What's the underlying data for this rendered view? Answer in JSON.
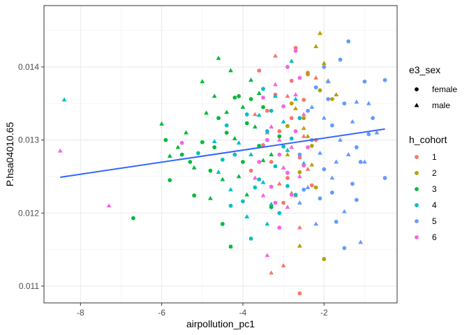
{
  "chart_data": {
    "type": "scatter",
    "title": "",
    "xlabel": "airpollution_pc1",
    "ylabel": "P.hsa04010.65",
    "xlim": [
      -8.9,
      -0.2
    ],
    "ylim": [
      0.01077,
      0.01484
    ],
    "x_ticks": [
      -8,
      -6,
      -4,
      -2
    ],
    "x_tick_labels": [
      "-8",
      "-6",
      "-4",
      "-2"
    ],
    "y_ticks": [
      0.011,
      0.012,
      0.013,
      0.014
    ],
    "y_tick_labels": [
      "0.011",
      "0.012",
      "0.013",
      "0.014"
    ],
    "grid": true,
    "legend_position": "right",
    "shape_legend": {
      "title": "e3_sex",
      "entries": [
        {
          "label": "female",
          "shape": "circle"
        },
        {
          "label": "male",
          "shape": "triangle"
        }
      ]
    },
    "color_legend": {
      "title": "h_cohort",
      "entries": [
        {
          "label": "1",
          "color": "#F8766D"
        },
        {
          "label": "2",
          "color": "#B79F00"
        },
        {
          "label": "3",
          "color": "#00BA38"
        },
        {
          "label": "4",
          "color": "#00BFC4"
        },
        {
          "label": "5",
          "color": "#619CFF"
        },
        {
          "label": "6",
          "color": "#F564E3"
        }
      ]
    },
    "trend_line": {
      "color": "#3366FF",
      "x": [
        -8.5,
        -0.5
      ],
      "y": [
        0.01249,
        0.01315
      ]
    },
    "series": [
      {
        "cohort": "1",
        "sex": "female",
        "points": [
          [
            -3.5,
            0.01293
          ],
          [
            -3.3,
            0.0127
          ],
          [
            -3.1,
            0.01312
          ],
          [
            -2.9,
            0.01248
          ],
          [
            -2.8,
            0.0133
          ],
          [
            -2.6,
            0.01276
          ],
          [
            -2.5,
            0.01355
          ],
          [
            -3.2,
            0.01362
          ],
          [
            -2.4,
            0.01392
          ],
          [
            -3.6,
            0.01395
          ],
          [
            -2.7,
            0.01426
          ],
          [
            -3.0,
            0.01214
          ],
          [
            -2.2,
            0.013
          ],
          [
            -3.8,
            0.01258
          ],
          [
            -2.6,
            0.0109
          ],
          [
            -2.8,
            0.01381
          ],
          [
            -3.4,
            0.0134
          ],
          [
            -2.3,
            0.01238
          ]
        ]
      },
      {
        "cohort": "1",
        "sex": "male",
        "points": [
          [
            -3.4,
            0.0131
          ],
          [
            -3.1,
            0.0124
          ],
          [
            -2.9,
            0.0136
          ],
          [
            -2.7,
            0.01224
          ],
          [
            -2.5,
            0.01305
          ],
          [
            -3.7,
            0.01335
          ],
          [
            -2.2,
            0.01385
          ],
          [
            -3.0,
            0.01128
          ],
          [
            -3.3,
            0.01118
          ],
          [
            -3.2,
            0.01415
          ],
          [
            -2.6,
            0.0118
          ],
          [
            -2.4,
            0.0126
          ]
        ]
      },
      {
        "cohort": "2",
        "sex": "female",
        "points": [
          [
            -2.9,
            0.01319
          ],
          [
            -2.5,
            0.0133
          ],
          [
            -2.3,
            0.01292
          ],
          [
            -2.1,
            0.01368
          ],
          [
            -2.0,
            0.01137
          ],
          [
            -2.6,
            0.01256
          ],
          [
            -2.8,
            0.0135
          ],
          [
            -2.2,
            0.01235
          ],
          [
            -2.4,
            0.0139
          ],
          [
            -1.8,
            0.01356
          ]
        ]
      },
      {
        "cohort": "2",
        "sex": "male",
        "points": [
          [
            -2.1,
            0.01446
          ],
          [
            -2.7,
            0.01343
          ],
          [
            -2.5,
            0.01316
          ],
          [
            -2.3,
            0.01266
          ],
          [
            -1.9,
            0.01381
          ],
          [
            -2.0,
            0.01405
          ],
          [
            -2.8,
            0.01227
          ],
          [
            -2.6,
            0.01155
          ],
          [
            -2.2,
            0.01428
          ],
          [
            -1.7,
            0.01362
          ],
          [
            -2.4,
            0.01305
          ],
          [
            -2.9,
            0.0128
          ]
        ]
      },
      {
        "cohort": "3",
        "sex": "female",
        "points": [
          [
            -6.7,
            0.01193
          ],
          [
            -5.0,
            0.01297
          ],
          [
            -4.6,
            0.0133
          ],
          [
            -4.4,
            0.0131
          ],
          [
            -4.2,
            0.01358
          ],
          [
            -3.9,
            0.01323
          ],
          [
            -3.6,
            0.01292
          ],
          [
            -5.5,
            0.0128
          ],
          [
            -5.2,
            0.01224
          ],
          [
            -4.8,
            0.01258
          ],
          [
            -4.0,
            0.0127
          ],
          [
            -3.8,
            0.01356
          ],
          [
            -4.5,
            0.01185
          ],
          [
            -5.3,
            0.0127
          ],
          [
            -3.5,
            0.01345
          ],
          [
            -4.1,
            0.0136
          ],
          [
            -4.7,
            0.0129
          ],
          [
            -5.8,
            0.01245
          ],
          [
            -3.3,
            0.01208
          ],
          [
            -4.3,
            0.01154
          ],
          [
            -3.1,
            0.01305
          ],
          [
            -5.9,
            0.013
          ]
        ]
      },
      {
        "cohort": "3",
        "sex": "male",
        "points": [
          [
            -5.0,
            0.0138
          ],
          [
            -4.7,
            0.0136
          ],
          [
            -4.4,
            0.01338
          ],
          [
            -4.2,
            0.01302
          ],
          [
            -4.0,
            0.01345
          ],
          [
            -3.7,
            0.01318
          ],
          [
            -5.6,
            0.0129
          ],
          [
            -5.4,
            0.0131
          ],
          [
            -4.9,
            0.01337
          ],
          [
            -3.5,
            0.01272
          ],
          [
            -3.3,
            0.0128
          ],
          [
            -4.6,
            0.01412
          ],
          [
            -4.3,
            0.01395
          ],
          [
            -3.8,
            0.01382
          ],
          [
            -5.2,
            0.01262
          ],
          [
            -4.8,
            0.0122
          ],
          [
            -4.1,
            0.0125
          ],
          [
            -3.9,
            0.01225
          ],
          [
            -5.8,
            0.01278
          ],
          [
            -6.0,
            0.01322
          ],
          [
            -4.5,
            0.01246
          ],
          [
            -3.6,
            0.01364
          ]
        ]
      },
      {
        "cohort": "4",
        "sex": "female",
        "points": [
          [
            -4.5,
            0.01273
          ],
          [
            -4.2,
            0.0128
          ],
          [
            -3.9,
            0.01335
          ],
          [
            -3.6,
            0.01246
          ],
          [
            -3.4,
            0.01312
          ],
          [
            -3.2,
            0.01264
          ],
          [
            -3.0,
            0.01291
          ],
          [
            -2.8,
            0.01302
          ],
          [
            -2.6,
            0.0133
          ],
          [
            -4.0,
            0.01216
          ],
          [
            -3.7,
            0.01235
          ],
          [
            -3.5,
            0.0137
          ],
          [
            -4.3,
            0.0121
          ],
          [
            -3.1,
            0.012
          ],
          [
            -2.9,
            0.01237
          ],
          [
            -3.3,
            0.0134
          ],
          [
            -4.4,
            0.0132
          ],
          [
            -2.7,
            0.01225
          ],
          [
            -3.8,
            0.01165
          ],
          [
            -5.1,
            0.01282
          ]
        ]
      },
      {
        "cohort": "4",
        "sex": "male",
        "points": [
          [
            -4.6,
            0.01256
          ],
          [
            -4.1,
            0.01296
          ],
          [
            -3.8,
            0.0128
          ],
          [
            -3.5,
            0.01242
          ],
          [
            -3.3,
            0.01212
          ],
          [
            -3.0,
            0.01325
          ],
          [
            -2.7,
            0.01356
          ],
          [
            -2.5,
            0.01268
          ],
          [
            -3.6,
            0.01334
          ],
          [
            -4.3,
            0.01232
          ],
          [
            -3.9,
            0.01195
          ],
          [
            -3.2,
            0.0136
          ],
          [
            -2.9,
            0.01286
          ],
          [
            -4.7,
            0.01298
          ],
          [
            -3.4,
            0.01185
          ],
          [
            -2.8,
            0.01408
          ],
          [
            -8.4,
            0.01355
          ]
        ]
      },
      {
        "cohort": "5",
        "sex": "female",
        "points": [
          [
            -2.6,
            0.0128
          ],
          [
            -2.3,
            0.013
          ],
          [
            -2.0,
            0.0126
          ],
          [
            -1.8,
            0.0132
          ],
          [
            -1.5,
            0.0135
          ],
          [
            -1.2,
            0.0129
          ],
          [
            -1.0,
            0.0138
          ],
          [
            -0.8,
            0.0133
          ],
          [
            -0.5,
            0.01382
          ],
          [
            -0.5,
            0.01248
          ],
          [
            -1.4,
            0.01435
          ],
          [
            -1.6,
            0.0141
          ],
          [
            -2.1,
            0.0122
          ],
          [
            -1.3,
            0.0124
          ],
          [
            -1.9,
            0.01356
          ],
          [
            -2.4,
            0.0134
          ],
          [
            -1.1,
            0.0127
          ],
          [
            -1.7,
            0.01188
          ],
          [
            -2.2,
            0.01372
          ],
          [
            -0.9,
            0.01308
          ],
          [
            -1.5,
            0.01152
          ],
          [
            -2.0,
            0.014
          ],
          [
            -1.2,
            0.01218
          ],
          [
            -1.8,
            0.01228
          ],
          [
            -2.5,
            0.01232
          ]
        ]
      },
      {
        "cohort": "5",
        "sex": "male",
        "points": [
          [
            -2.4,
            0.01235
          ],
          [
            -2.1,
            0.01282
          ],
          [
            -1.8,
            0.01248
          ],
          [
            -1.6,
            0.013
          ],
          [
            -1.3,
            0.01325
          ],
          [
            -1.0,
            0.0127
          ],
          [
            -0.7,
            0.0131
          ],
          [
            -1.5,
            0.01202
          ],
          [
            -1.9,
            0.0138
          ],
          [
            -2.2,
            0.01185
          ],
          [
            -1.2,
            0.01352
          ],
          [
            -2.6,
            0.01214
          ],
          [
            -1.7,
            0.0127
          ],
          [
            -1.1,
            0.0116
          ],
          [
            -2.0,
            0.0133
          ],
          [
            -1.4,
            0.0128
          ],
          [
            -0.9,
            0.0135
          ],
          [
            -2.3,
            0.01345
          ]
        ]
      },
      {
        "cohort": "6",
        "sex": "female",
        "points": [
          [
            -3.4,
            0.013
          ],
          [
            -3.1,
            0.0128
          ],
          [
            -2.9,
            0.01255
          ],
          [
            -2.7,
            0.01312
          ],
          [
            -2.5,
            0.01265
          ],
          [
            -3.3,
            0.01236
          ],
          [
            -3.0,
            0.01346
          ],
          [
            -2.8,
            0.01225
          ],
          [
            -3.6,
            0.0127
          ],
          [
            -2.6,
            0.01385
          ],
          [
            -3.2,
            0.01214
          ],
          [
            -2.9,
            0.014
          ],
          [
            -5.5,
            0.01296
          ],
          [
            -3.5,
            0.01358
          ],
          [
            -2.4,
            0.0129
          ],
          [
            -2.7,
            0.01422
          ],
          [
            -3.1,
            0.0118
          ]
        ]
      },
      {
        "cohort": "6",
        "sex": "male",
        "points": [
          [
            -8.5,
            0.01285
          ],
          [
            -3.3,
            0.01318
          ],
          [
            -3.0,
            0.01262
          ],
          [
            -2.8,
            0.0129
          ],
          [
            -2.6,
            0.0125
          ],
          [
            -3.5,
            0.01224
          ],
          [
            -3.2,
            0.01376
          ],
          [
            -2.9,
            0.01208
          ],
          [
            -2.5,
            0.01335
          ],
          [
            -3.7,
            0.01248
          ],
          [
            -3.4,
            0.01142
          ],
          [
            -2.7,
            0.01362
          ],
          [
            -3.1,
            0.013
          ],
          [
            -7.3,
            0.0121
          ]
        ]
      }
    ]
  }
}
